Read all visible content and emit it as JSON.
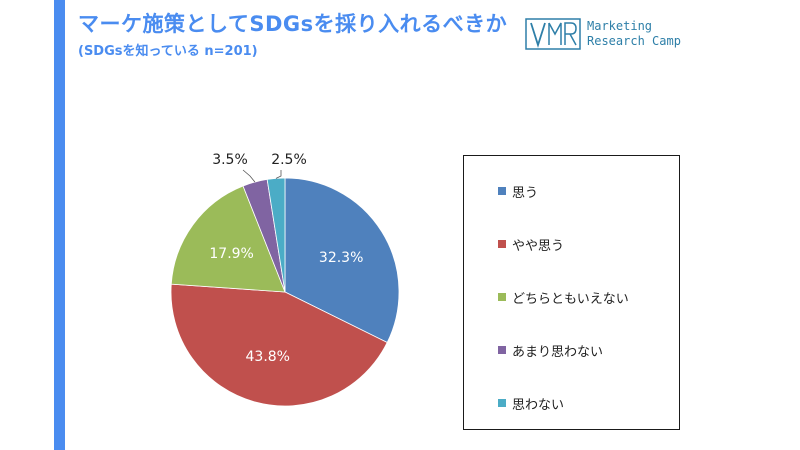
{
  "header": {
    "title": "マーケ施策としてSDGsを採り入れるべきか",
    "subtitle": "(SDGsを知っている n=201)"
  },
  "logo": {
    "mark": "MRC",
    "line1": "Marketing",
    "line2": "Research Camp",
    "color": "#2e7fa8"
  },
  "colors": {
    "accent": "#4a8cf0"
  },
  "chart_data": {
    "type": "pie",
    "title": "",
    "start_angle_deg": 0,
    "direction": "clockwise",
    "legend_position": "right",
    "slices": [
      {
        "label": "思う",
        "value": 32.3,
        "value_label": "32.3%",
        "color": "#4f81bd",
        "label_placement": "inside"
      },
      {
        "label": "やや思う",
        "value": 43.8,
        "value_label": "43.8%",
        "color": "#c0504d",
        "label_placement": "inside"
      },
      {
        "label": "どちらともいえない",
        "value": 17.9,
        "value_label": "17.9%",
        "color": "#9bbb59",
        "label_placement": "inside"
      },
      {
        "label": "あまり思わない",
        "value": 3.5,
        "value_label": "3.5%",
        "color": "#8064a2",
        "label_placement": "outside"
      },
      {
        "label": "思わない",
        "value": 2.5,
        "value_label": "2.5%",
        "color": "#4bacc6",
        "label_placement": "outside"
      }
    ]
  }
}
